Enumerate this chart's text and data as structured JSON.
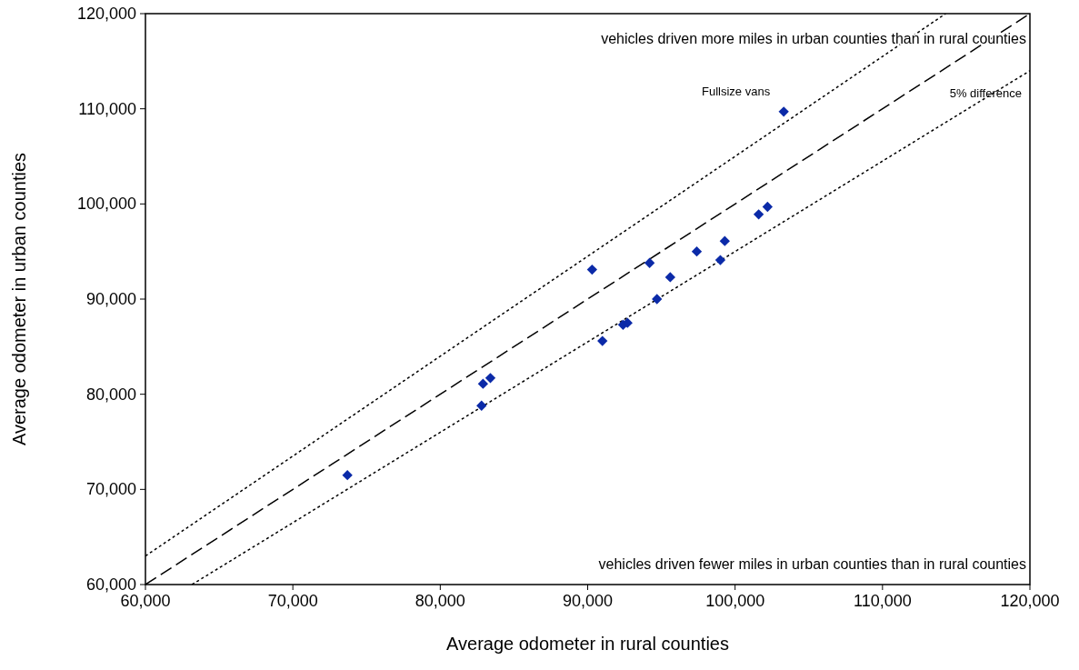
{
  "chart_data": {
    "type": "scatter",
    "xlabel": "Average odometer in rural counties",
    "ylabel": "Average odometer in urban counties",
    "xlim": [
      60000,
      120000
    ],
    "ylim": [
      60000,
      120000
    ],
    "xticks": [
      {
        "value": 60000,
        "label": "60,000"
      },
      {
        "value": 70000,
        "label": "70,000"
      },
      {
        "value": 80000,
        "label": "80,000"
      },
      {
        "value": 90000,
        "label": "90,000"
      },
      {
        "value": 100000,
        "label": "100,000"
      },
      {
        "value": 110000,
        "label": "110,000"
      },
      {
        "value": 120000,
        "label": "120,000"
      }
    ],
    "yticks": [
      {
        "value": 60000,
        "label": "60,000"
      },
      {
        "value": 70000,
        "label": "70,000"
      },
      {
        "value": 80000,
        "label": "80,000"
      },
      {
        "value": 90000,
        "label": "90,000"
      },
      {
        "value": 100000,
        "label": "100,000"
      },
      {
        "value": 110000,
        "label": "110,000"
      },
      {
        "value": 120000,
        "label": "120,000"
      }
    ],
    "grid": false,
    "marker": "diamond",
    "series": [
      {
        "color": "#0b2aa8",
        "x": [
          73700,
          82800,
          82900,
          83400,
          90300,
          91000,
          92400,
          92700,
          94700,
          94200,
          95600,
          97400,
          99000,
          99300,
          101600,
          102200,
          103300
        ],
        "values": [
          71500,
          78800,
          81100,
          81700,
          93100,
          85600,
          87300,
          87500,
          90000,
          93800,
          92300,
          95000,
          94100,
          96100,
          98900,
          99700,
          109700
        ]
      },
      {
        "type": "line",
        "color": "#000000",
        "line_style": "dashed",
        "marker": "none",
        "x": [
          60000,
          120000
        ],
        "values": [
          60000,
          120000
        ]
      },
      {
        "type": "line",
        "color": "#000000",
        "line_style": "dotted",
        "marker": "none",
        "x": [
          60000,
          114286
        ],
        "values": [
          63000,
          120000
        ]
      },
      {
        "type": "line",
        "color": "#000000",
        "line_style": "dotted",
        "marker": "none",
        "x": [
          63158,
          120000
        ],
        "values": [
          60000,
          114000
        ]
      }
    ],
    "annotations": [
      "vehicles driven more miles in urban counties than in rural counties",
      "vehicles driven fewer miles in urban counties than in rural counties",
      {
        "text": "Fullsize vans",
        "x": 103300,
        "y": 109700
      },
      {
        "text": "5% difference",
        "x": 117000,
        "y": 111200
      }
    ]
  }
}
